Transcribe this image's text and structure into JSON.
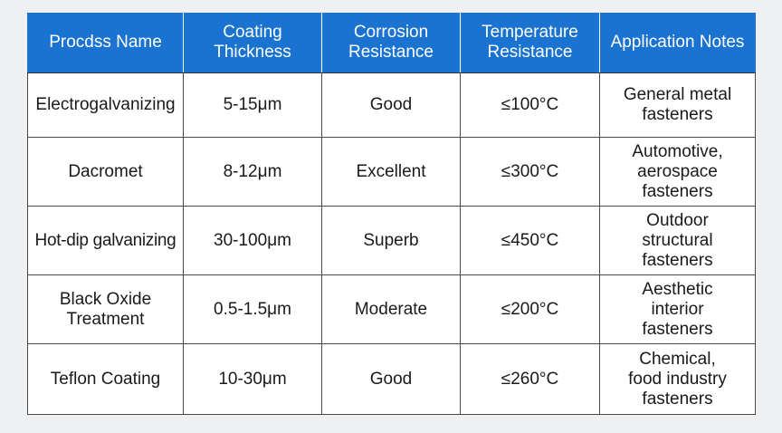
{
  "table": {
    "headers": [
      "Procdss Name",
      "Coating\nThickness",
      "Corrosion\nResistance",
      "Temperature\nResistance",
      "Application Notes"
    ],
    "rows": [
      [
        "Electrogalvanizing",
        "5-15μm",
        "Good",
        "≤100°C",
        "General metal\nfasteners"
      ],
      [
        "Dacromet",
        "8-12μm",
        "Excellent",
        "≤300°C",
        "Automotive,\naerospace\nfasteners"
      ],
      [
        "Hot-dip galvanizing",
        "30-100μm",
        "Superb",
        "≤450°C",
        "Outdoor\nstructural\nfasteners"
      ],
      [
        "Black Oxide\nTreatment",
        "0.5-1.5μm",
        "Moderate",
        "≤200°C",
        "Aesthetic\ninterior\nfasteners"
      ],
      [
        "Teflon Coating",
        "10-30μm",
        "Good",
        "≤260°C",
        "Chemical,\nfood industry\nfasteners"
      ]
    ]
  },
  "colors": {
    "header_bg": "#1b73d1",
    "header_text": "#ffffff",
    "border": "#4a4a4a",
    "page_bg": "#eef0f2"
  }
}
